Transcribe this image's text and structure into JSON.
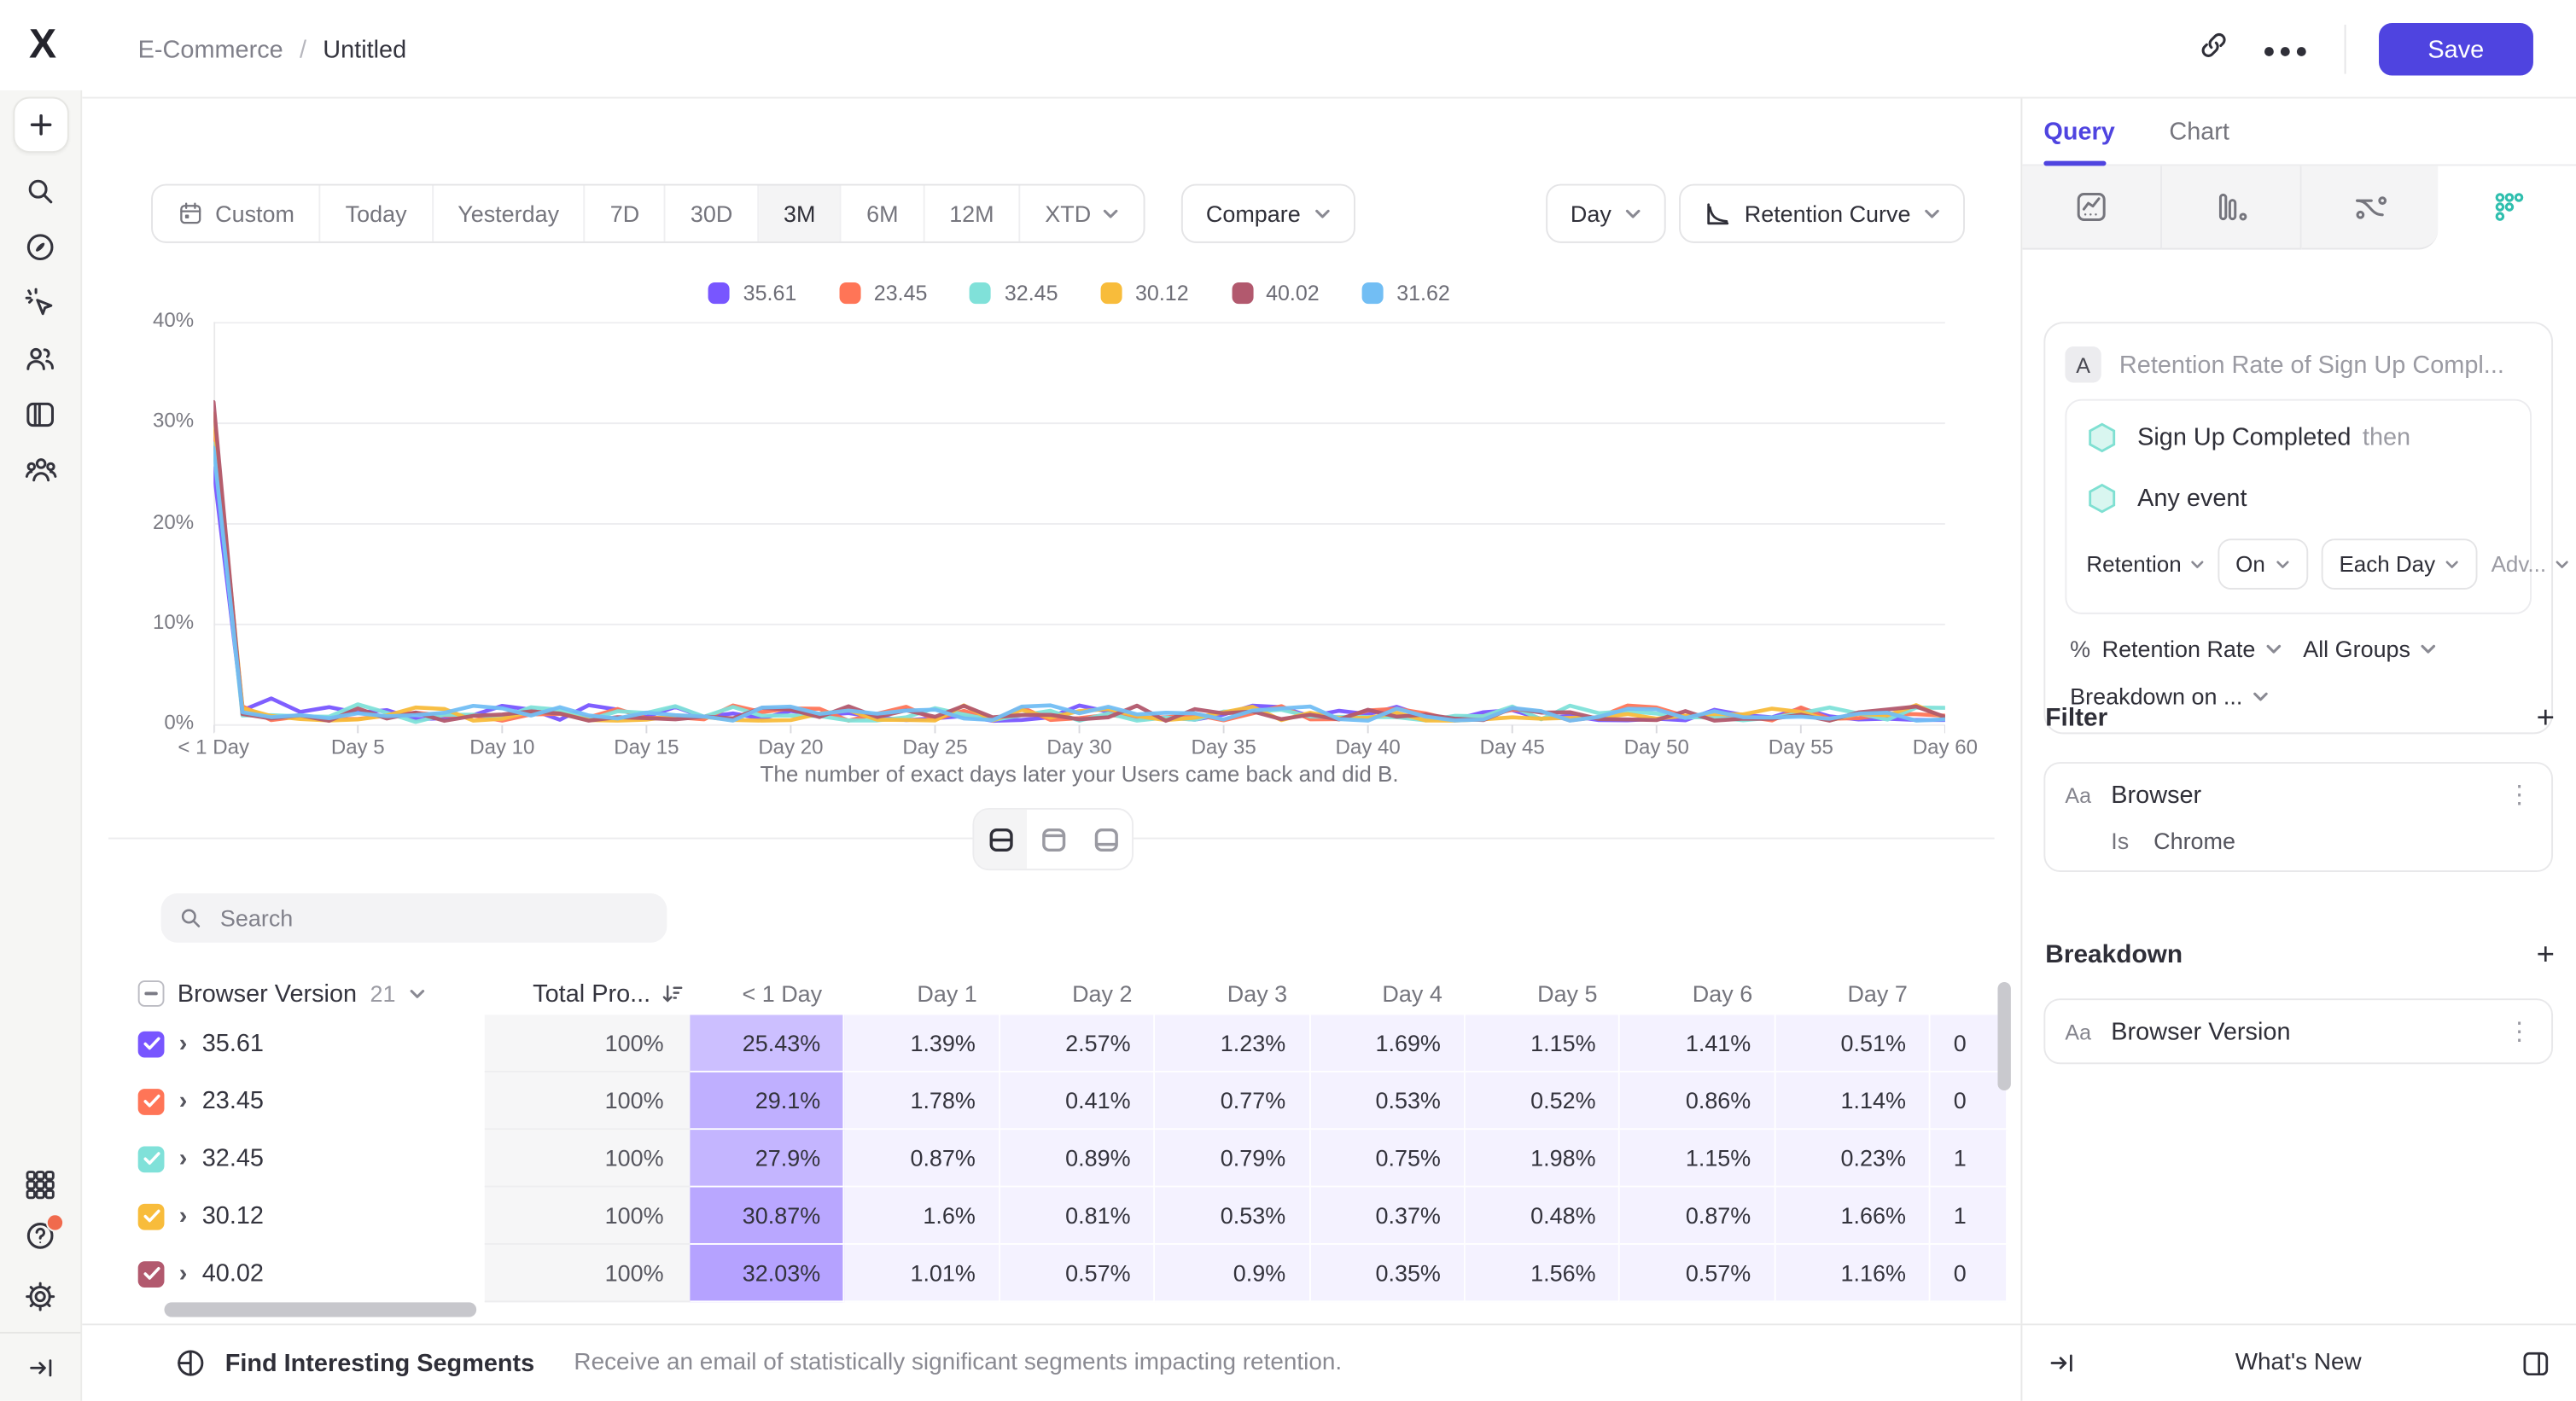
{
  "header": {
    "breadcrumb_project": "E-Commerce",
    "breadcrumb_separator": "/",
    "breadcrumb_current": "Untitled",
    "save_label": "Save"
  },
  "toolbar": {
    "ranges": [
      "Custom",
      "Today",
      "Yesterday",
      "7D",
      "30D",
      "3M",
      "6M",
      "12M",
      "XTD"
    ],
    "active_range": "3M",
    "compare_label": "Compare",
    "granularity_label": "Day",
    "chart_type_label": "Retention Curve"
  },
  "chart_data": {
    "type": "line",
    "x_tick_labels": [
      "< 1 Day",
      "Day 5",
      "Day 10",
      "Day 15",
      "Day 20",
      "Day 25",
      "Day 30",
      "Day 35",
      "Day 40",
      "Day 45",
      "Day 50",
      "Day 55",
      "Day 60"
    ],
    "x_points": 61,
    "y_ticks": [
      "40%",
      "30%",
      "20%",
      "10%",
      "0%"
    ],
    "ylim": [
      0,
      40
    ],
    "grid": true,
    "legend_position": "top-center",
    "caption": "The number of exact days later your Users came back and did B.",
    "series": [
      {
        "name": "35.61",
        "color": "#7856FF",
        "day0": 25.43,
        "days1_7": [
          1.39,
          2.57,
          1.23,
          1.69,
          1.15,
          1.41,
          0.51
        ]
      },
      {
        "name": "23.45",
        "color": "#FF7557",
        "day0": 29.1,
        "days1_7": [
          1.78,
          0.41,
          0.77,
          0.53,
          0.52,
          0.86,
          1.14
        ]
      },
      {
        "name": "32.45",
        "color": "#80E1D9",
        "day0": 27.9,
        "days1_7": [
          0.87,
          0.89,
          0.79,
          0.75,
          1.98,
          1.15,
          0.23
        ]
      },
      {
        "name": "30.12",
        "color": "#F8BC3B",
        "day0": 30.87,
        "days1_7": [
          1.6,
          0.81,
          0.53,
          0.37,
          0.48,
          0.87,
          1.66
        ]
      },
      {
        "name": "40.02",
        "color": "#B2596E",
        "day0": 32.03,
        "days1_7": [
          1.01,
          0.57,
          0.9,
          0.35,
          1.56,
          0.57,
          1.16
        ]
      },
      {
        "name": "31.62",
        "color": "#72BEF4",
        "day0": 27.5,
        "days1_7": [
          1.2,
          0.7,
          0.9,
          0.6,
          1.1,
          0.8,
          0.9
        ]
      }
    ]
  },
  "table": {
    "search_placeholder": "Search",
    "group_column": "Browser Version",
    "group_count": "21",
    "total_column": "Total Pro...",
    "day_columns": [
      "< 1 Day",
      "Day 1",
      "Day 2",
      "Day 3",
      "Day 4",
      "Day 5",
      "Day 6",
      "Day 7"
    ],
    "rows": [
      {
        "label": "35.61",
        "color": "#7856FF",
        "total": "100%",
        "values": [
          "25.43%",
          "1.39%",
          "2.57%",
          "1.23%",
          "1.69%",
          "1.15%",
          "1.41%",
          "0.51%"
        ],
        "cut": "0",
        "shade": 0.38
      },
      {
        "label": "23.45",
        "color": "#FF7557",
        "total": "100%",
        "values": [
          "29.1%",
          "1.78%",
          "0.41%",
          "0.77%",
          "0.53%",
          "0.52%",
          "0.86%",
          "1.14%"
        ],
        "cut": "0",
        "shade": 0.47
      },
      {
        "label": "32.45",
        "color": "#80E1D9",
        "total": "100%",
        "values": [
          "27.9%",
          "0.87%",
          "0.89%",
          "0.79%",
          "0.75%",
          "1.98%",
          "1.15%",
          "0.23%"
        ],
        "cut": "1",
        "shade": 0.44
      },
      {
        "label": "30.12",
        "color": "#F8BC3B",
        "total": "100%",
        "values": [
          "30.87%",
          "1.6%",
          "0.81%",
          "0.53%",
          "0.37%",
          "0.48%",
          "0.87%",
          "1.66%"
        ],
        "cut": "1",
        "shade": 0.52
      },
      {
        "label": "40.02",
        "color": "#B2596E",
        "total": "100%",
        "values": [
          "32.03%",
          "1.01%",
          "0.57%",
          "0.9%",
          "0.35%",
          "1.56%",
          "0.57%",
          "1.16%"
        ],
        "cut": "0",
        "shade": 0.55
      }
    ]
  },
  "query_panel": {
    "tabs": [
      "Query",
      "Chart"
    ],
    "active_tab": "Query",
    "title_badge": "A",
    "title": "Retention Rate of Sign Up Compl...",
    "steps": [
      {
        "event": "Sign Up Completed",
        "suffix": "then"
      },
      {
        "event": "Any event",
        "suffix": ""
      }
    ],
    "controls": {
      "retention": "Retention",
      "on": "On",
      "each_day": "Each Day",
      "advanced": "Adv..."
    },
    "measure": {
      "symbol": "%",
      "label": "Retention Rate",
      "groups": "All Groups"
    },
    "breakdown_on": "Breakdown on ...",
    "filter": {
      "heading": "Filter",
      "type_label": "Aa",
      "property": "Browser",
      "operator": "Is",
      "value": "Chrome"
    },
    "breakdown": {
      "heading": "Breakdown",
      "type_label": "Aa",
      "property": "Browser Version"
    }
  },
  "bottom": {
    "segments_title": "Find Interesting Segments",
    "segments_desc": "Receive an email of statistically significant segments impacting retention.",
    "whats_new": "What's New"
  },
  "colors": {
    "accent": "#4f44e0",
    "table_purple": "#7856FF"
  }
}
